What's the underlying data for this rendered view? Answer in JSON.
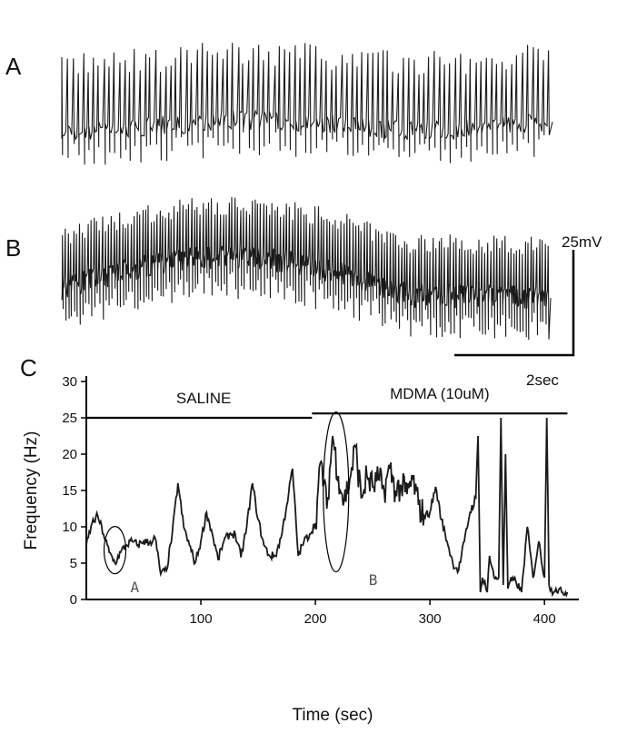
{
  "panels": {
    "a_label": "A",
    "b_label": "B",
    "c_label": "C"
  },
  "scale_bar": {
    "voltage_label": "25mV",
    "time_label": "2sec"
  },
  "colors": {
    "trace": "#1a1a1a",
    "axis": "#000000",
    "annotation": "#555555"
  },
  "chart_data": [
    {
      "type": "line",
      "panel": "A",
      "description": "Membrane potential trace, regular spiking",
      "title": "",
      "spike_count_approx": 95
    },
    {
      "type": "line",
      "panel": "B",
      "description": "Membrane potential trace, high frequency spiking",
      "title": "",
      "spike_count_approx": 170
    },
    {
      "type": "line",
      "panel": "C",
      "title": "",
      "xlabel": "Time (sec)",
      "ylabel": "Frequency (Hz)",
      "xlim": [
        0,
        430
      ],
      "ylim": [
        0,
        30
      ],
      "xticks": [
        100,
        200,
        300,
        400
      ],
      "yticks": [
        0,
        5,
        10,
        15,
        20,
        25,
        30
      ],
      "grid": false,
      "bars": [
        {
          "label": "SALINE",
          "x_start": 0,
          "x_end": 197,
          "y": 25
        },
        {
          "label": "MDMA (10uM)",
          "x_start": 197,
          "x_end": 420,
          "y": 25.6
        }
      ],
      "annotations": [
        {
          "label": "A",
          "x": 25,
          "y": 6
        },
        {
          "label": "B",
          "x": 218,
          "y": 14
        }
      ],
      "series": [
        {
          "x": [
            0,
            5,
            10,
            15,
            20,
            25,
            30,
            35,
            40,
            45,
            50,
            55,
            60,
            65,
            70,
            75,
            80,
            85,
            90,
            95,
            100,
            105,
            110,
            115,
            120,
            125,
            130,
            135,
            140,
            145,
            150,
            155,
            160,
            165,
            170,
            175,
            180,
            185,
            190,
            195,
            200,
            205,
            210,
            215,
            220,
            225,
            230,
            235,
            240,
            245,
            250,
            255,
            260,
            265,
            270,
            275,
            280,
            285,
            290,
            295,
            300,
            305,
            310,
            315,
            320,
            325,
            330,
            335,
            340,
            342,
            344,
            346,
            348,
            350,
            352,
            356,
            360,
            362,
            364,
            366,
            368,
            370,
            375,
            380,
            385,
            390,
            395,
            400,
            402,
            404,
            406,
            408,
            410,
            415,
            420
          ],
          "y": [
            7.5,
            10.5,
            11.5,
            9,
            6.5,
            5,
            6.5,
            7.5,
            8,
            7.5,
            8,
            7.8,
            8.5,
            3.5,
            4,
            9,
            16,
            10,
            7.5,
            5,
            8,
            12,
            9,
            5.5,
            8,
            9,
            9,
            5.8,
            10,
            16,
            11,
            7.5,
            6,
            6,
            8.5,
            13,
            18,
            6,
            8,
            9,
            10.5,
            19,
            12.5,
            22.5,
            17,
            13.5,
            16.5,
            21,
            14,
            17,
            15.5,
            16.5,
            15,
            18,
            15,
            15.5,
            14.5,
            16.5,
            13,
            11.5,
            12,
            15.5,
            11,
            8,
            5,
            4,
            8,
            12,
            14,
            22.5,
            1,
            3,
            2.5,
            1,
            6,
            3,
            3,
            25,
            2,
            20,
            1.5,
            2.5,
            2.5,
            1,
            10,
            3,
            8,
            3,
            25,
            2,
            1.5,
            1,
            1.5,
            1,
            1
          ]
        }
      ]
    }
  ]
}
